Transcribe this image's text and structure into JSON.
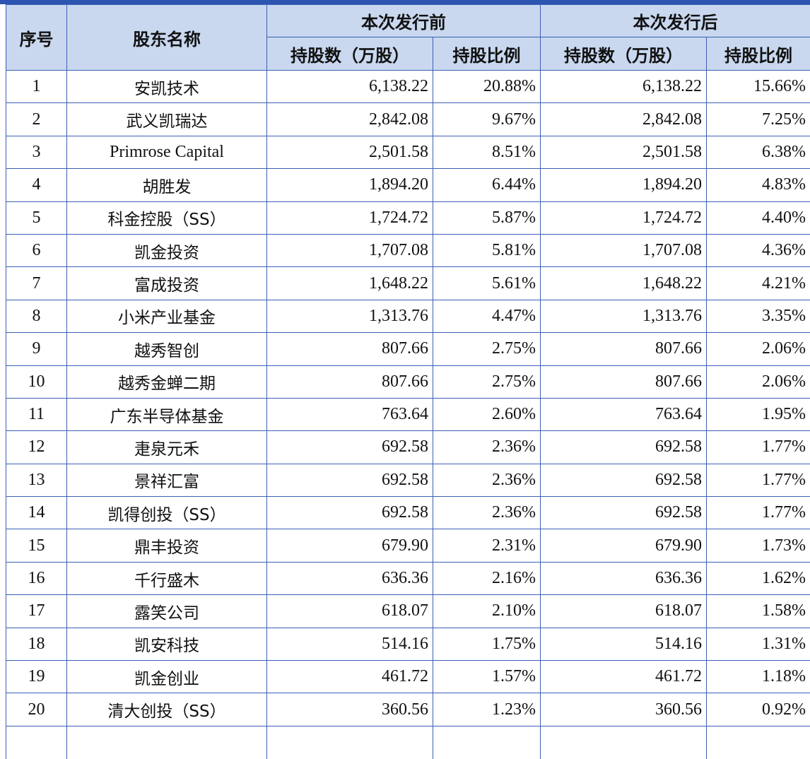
{
  "header": {
    "index": "序号",
    "name": "股东名称",
    "before_group": "本次发行前",
    "after_group": "本次发行后",
    "shares_label": "持股数（万股）",
    "ratio_label": "持股比例"
  },
  "rows": [
    {
      "idx": "1",
      "name": "安凯技术",
      "before_shares": "6,138.22",
      "before_ratio": "20.88%",
      "after_shares": "6,138.22",
      "after_ratio": "15.66%"
    },
    {
      "idx": "2",
      "name": "武义凯瑞达",
      "before_shares": "2,842.08",
      "before_ratio": "9.67%",
      "after_shares": "2,842.08",
      "after_ratio": "7.25%"
    },
    {
      "idx": "3",
      "name": "Primrose Capital",
      "before_shares": "2,501.58",
      "before_ratio": "8.51%",
      "after_shares": "2,501.58",
      "after_ratio": "6.38%"
    },
    {
      "idx": "4",
      "name": "胡胜发",
      "before_shares": "1,894.20",
      "before_ratio": "6.44%",
      "after_shares": "1,894.20",
      "after_ratio": "4.83%"
    },
    {
      "idx": "5",
      "name": "科金控股（SS）",
      "before_shares": "1,724.72",
      "before_ratio": "5.87%",
      "after_shares": "1,724.72",
      "after_ratio": "4.40%"
    },
    {
      "idx": "6",
      "name": "凯金投资",
      "before_shares": "1,707.08",
      "before_ratio": "5.81%",
      "after_shares": "1,707.08",
      "after_ratio": "4.36%"
    },
    {
      "idx": "7",
      "name": "富成投资",
      "before_shares": "1,648.22",
      "before_ratio": "5.61%",
      "after_shares": "1,648.22",
      "after_ratio": "4.21%"
    },
    {
      "idx": "8",
      "name": "小米产业基金",
      "before_shares": "1,313.76",
      "before_ratio": "4.47%",
      "after_shares": "1,313.76",
      "after_ratio": "3.35%"
    },
    {
      "idx": "9",
      "name": "越秀智创",
      "before_shares": "807.66",
      "before_ratio": "2.75%",
      "after_shares": "807.66",
      "after_ratio": "2.06%"
    },
    {
      "idx": "10",
      "name": "越秀金蝉二期",
      "before_shares": "807.66",
      "before_ratio": "2.75%",
      "after_shares": "807.66",
      "after_ratio": "2.06%"
    },
    {
      "idx": "11",
      "name": "广东半导体基金",
      "before_shares": "763.64",
      "before_ratio": "2.60%",
      "after_shares": "763.64",
      "after_ratio": "1.95%"
    },
    {
      "idx": "12",
      "name": "疌泉元禾",
      "before_shares": "692.58",
      "before_ratio": "2.36%",
      "after_shares": "692.58",
      "after_ratio": "1.77%"
    },
    {
      "idx": "13",
      "name": "景祥汇富",
      "before_shares": "692.58",
      "before_ratio": "2.36%",
      "after_shares": "692.58",
      "after_ratio": "1.77%"
    },
    {
      "idx": "14",
      "name": "凯得创投（SS）",
      "before_shares": "692.58",
      "before_ratio": "2.36%",
      "after_shares": "692.58",
      "after_ratio": "1.77%"
    },
    {
      "idx": "15",
      "name": "鼎丰投资",
      "before_shares": "679.90",
      "before_ratio": "2.31%",
      "after_shares": "679.90",
      "after_ratio": "1.73%"
    },
    {
      "idx": "16",
      "name": "千行盛木",
      "before_shares": "636.36",
      "before_ratio": "2.16%",
      "after_shares": "636.36",
      "after_ratio": "1.62%"
    },
    {
      "idx": "17",
      "name": "露笑公司",
      "before_shares": "618.07",
      "before_ratio": "2.10%",
      "after_shares": "618.07",
      "after_ratio": "1.58%"
    },
    {
      "idx": "18",
      "name": "凯安科技",
      "before_shares": "514.16",
      "before_ratio": "1.75%",
      "after_shares": "514.16",
      "after_ratio": "1.31%"
    },
    {
      "idx": "19",
      "name": "凯金创业",
      "before_shares": "461.72",
      "before_ratio": "1.57%",
      "after_shares": "461.72",
      "after_ratio": "1.18%"
    },
    {
      "idx": "20",
      "name": "清大创投（SS）",
      "before_shares": "360.56",
      "before_ratio": "1.23%",
      "after_shares": "360.56",
      "after_ratio": "0.92%"
    }
  ]
}
